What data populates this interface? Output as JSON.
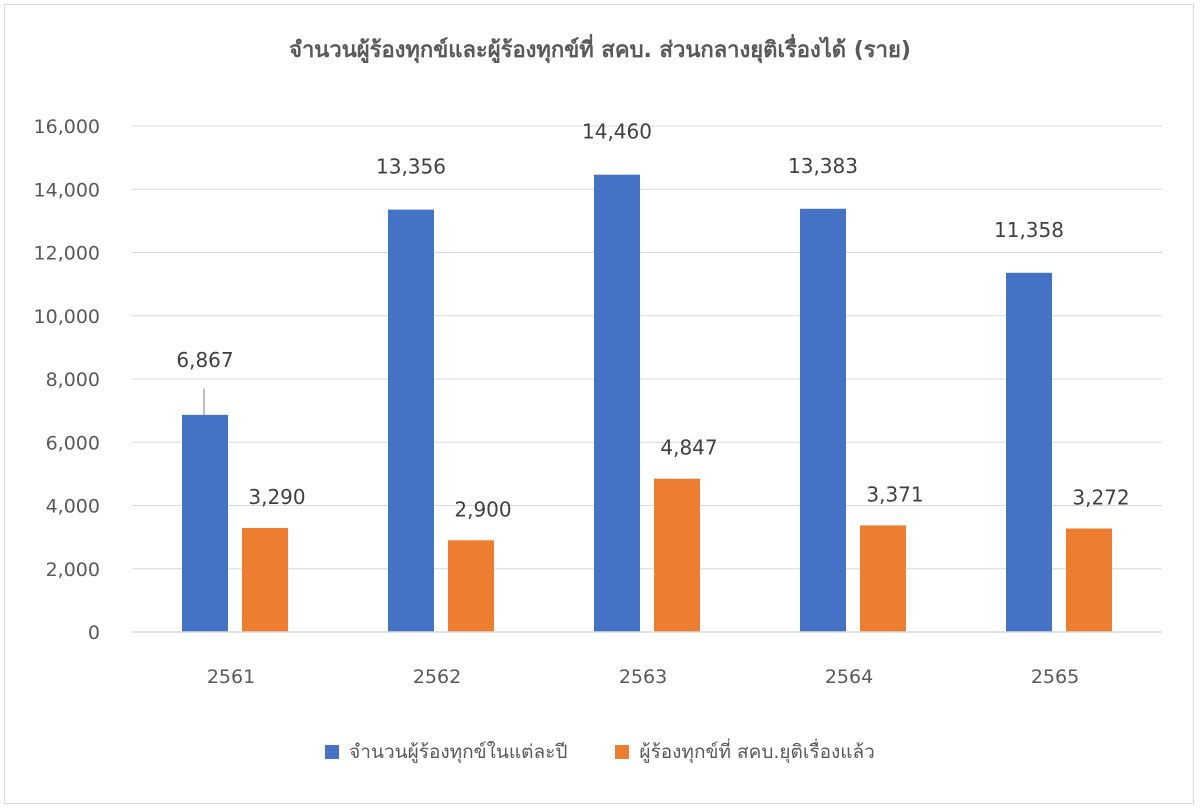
{
  "chart_data": {
    "type": "bar",
    "title": "จำนวนผู้ร้องทุกข์และผู้ร้องทุกข์ที่ สคบ. ส่วนกลางยุติเรื่องได้  (ราย)",
    "categories": [
      "2561",
      "2562",
      "2563",
      "2564",
      "2565"
    ],
    "series": [
      {
        "name": "จำนวนผู้ร้องทุกข์ในแต่ละปี",
        "color": "#4472c4",
        "values": [
          6867,
          13356,
          14460,
          13383,
          11358
        ],
        "labels": [
          "6,867",
          "13,356",
          "14,460",
          "13,383",
          "11,358"
        ]
      },
      {
        "name": "ผู้ร้องทุกข์ที่ สคบ.ยุติเรื่องแล้ว",
        "color": "#ed7d31",
        "values": [
          3290,
          2900,
          4847,
          3371,
          3272
        ],
        "labels": [
          "3,290",
          "2,900",
          "4,847",
          "3,371",
          "3,272"
        ]
      }
    ],
    "ylim": [
      0,
      16000
    ],
    "yticks": [
      0,
      2000,
      4000,
      6000,
      8000,
      10000,
      12000,
      14000,
      16000
    ],
    "ytick_labels": [
      "0",
      "2,000",
      "4,000",
      "6,000",
      "8,000",
      "10,000",
      "12,000",
      "14,000",
      "16,000"
    ],
    "grid": true,
    "legend_position": "bottom",
    "xlabel": "",
    "ylabel": ""
  }
}
